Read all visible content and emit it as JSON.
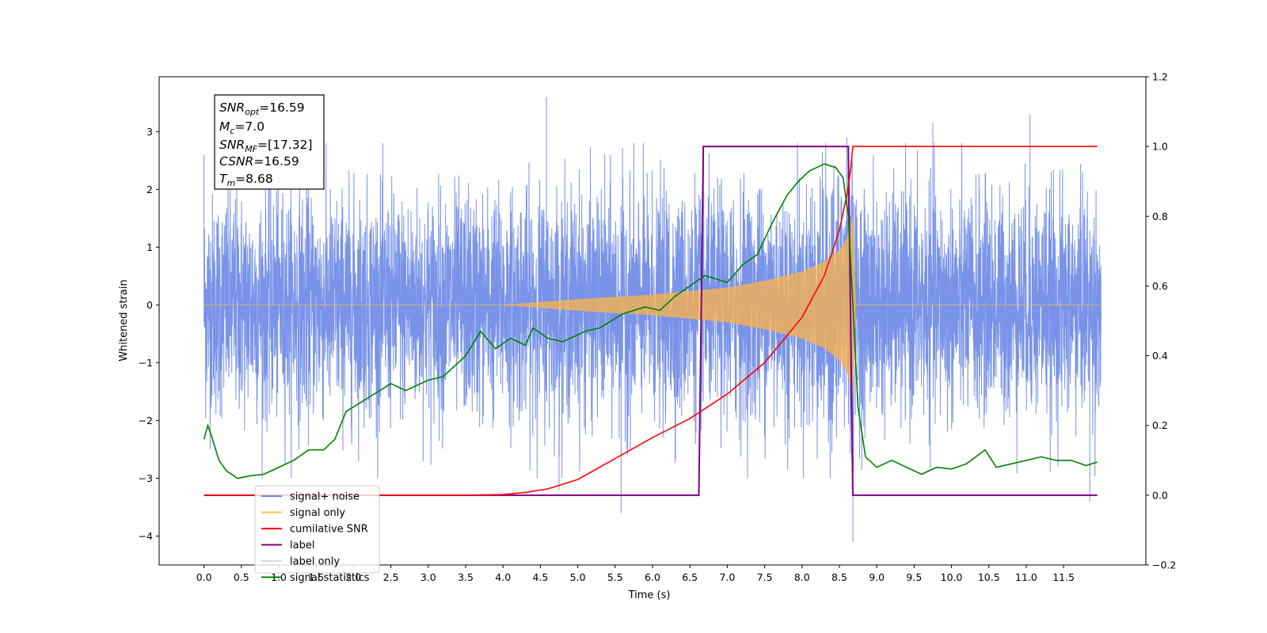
{
  "chart_data": {
    "type": "line",
    "xlabel": "Time (s)",
    "ylabel": "Whitened strain",
    "x_range": [
      0,
      12
    ],
    "xlim": [
      -0.6,
      12.6
    ],
    "ylim_left": [
      -4.5,
      3.95
    ],
    "ylim_right": [
      -0.2,
      1.2
    ],
    "x_ticks": [
      "0.0",
      "0.5",
      "1.0",
      "1.5",
      "2.0",
      "2.5",
      "3.0",
      "3.5",
      "4.0",
      "4.5",
      "5.0",
      "5.5",
      "6.0",
      "6.5",
      "7.0",
      "7.5",
      "8.0",
      "8.5",
      "9.0",
      "9.5",
      "10.0",
      "10.5",
      "11.0",
      "11.5"
    ],
    "y_ticks_left": [
      "3",
      "2",
      "1",
      "0",
      "−1",
      "−2",
      "−3",
      "−4"
    ],
    "y_ticks_right": [
      "1.2",
      "1.0",
      "0.8",
      "0.6",
      "0.4",
      "0.2",
      "0.0",
      "−0.2"
    ],
    "grid": false,
    "legend_position": "lower-left",
    "legend": [
      {
        "name": "signal+ noise",
        "color": "#6a87e6"
      },
      {
        "name": "signal only",
        "color": "#ffc04d"
      },
      {
        "name": "cumilative SNR",
        "color": "#ff0000"
      },
      {
        "name": "label",
        "color": "#800080"
      },
      {
        "name": "label only",
        "color": "#d8d8d8"
      },
      {
        "name": "signal statistics",
        "color": "#008000"
      }
    ],
    "annotation": [
      {
        "base": "SNR",
        "sub": "opt",
        "value": "=16.59"
      },
      {
        "base": "M",
        "sub": "c",
        "value": "=7.0"
      },
      {
        "base": "SNR",
        "sub": "MF",
        "value": "=[17.32]"
      },
      {
        "base": "CSNR",
        "sub": "",
        "value": "=16.59"
      },
      {
        "base": "T",
        "sub": "m",
        "value": "=8.68"
      }
    ],
    "series": [
      {
        "name": "signal+ noise",
        "axis": "left",
        "description": "whitened noise with std approx 1, amplitude range approx -4.1 to 3.6",
        "noise_std": 1.0,
        "peaks": [
          {
            "x": 0.0,
            "y": 2.6
          },
          {
            "x": 4.58,
            "y": 3.6
          },
          {
            "x": 5.58,
            "y": -3.6
          },
          {
            "x": 8.68,
            "y": -4.1
          },
          {
            "x": 11.85,
            "y": -3.4
          },
          {
            "x": 11.05,
            "y": 3.3
          },
          {
            "x": 8.6,
            "y": 2.9
          },
          {
            "x": 9.75,
            "y": 3.15
          },
          {
            "x": 4.75,
            "y": -3.2
          }
        ]
      },
      {
        "name": "signal only",
        "axis": "left",
        "description": "chirp waveform with growing envelope from about 4.0 s to merger at 8.68 s",
        "envelope": [
          [
            4.0,
            0.0
          ],
          [
            5.0,
            0.1
          ],
          [
            6.0,
            0.18
          ],
          [
            7.0,
            0.3
          ],
          [
            7.5,
            0.42
          ],
          [
            8.0,
            0.58
          ],
          [
            8.3,
            0.75
          ],
          [
            8.5,
            0.95
          ],
          [
            8.6,
            1.15
          ],
          [
            8.65,
            1.4
          ],
          [
            8.68,
            1.55
          ],
          [
            8.72,
            0.0
          ]
        ]
      },
      {
        "name": "cumilative SNR",
        "axis": "right",
        "points": [
          [
            0.0,
            0.0
          ],
          [
            3.5,
            0.0
          ],
          [
            4.0,
            0.002
          ],
          [
            4.3,
            0.008
          ],
          [
            4.6,
            0.018
          ],
          [
            5.0,
            0.045
          ],
          [
            5.5,
            0.105
          ],
          [
            6.0,
            0.165
          ],
          [
            6.5,
            0.22
          ],
          [
            7.0,
            0.29
          ],
          [
            7.5,
            0.38
          ],
          [
            8.0,
            0.51
          ],
          [
            8.3,
            0.63
          ],
          [
            8.5,
            0.76
          ],
          [
            8.6,
            0.86
          ],
          [
            8.65,
            0.93
          ],
          [
            8.68,
            1.0
          ],
          [
            11.95,
            1.0
          ]
        ]
      },
      {
        "name": "label",
        "axis": "right",
        "points": [
          [
            0.0,
            0.0
          ],
          [
            6.62,
            0.0
          ],
          [
            6.68,
            1.0
          ],
          [
            8.62,
            1.0
          ],
          [
            8.68,
            0.0
          ],
          [
            11.95,
            0.0
          ]
        ]
      },
      {
        "name": "signal statistics",
        "axis": "right",
        "points": [
          [
            0.0,
            0.16
          ],
          [
            0.05,
            0.2
          ],
          [
            0.1,
            0.17
          ],
          [
            0.2,
            0.1
          ],
          [
            0.3,
            0.07
          ],
          [
            0.45,
            0.048
          ],
          [
            0.6,
            0.055
          ],
          [
            0.8,
            0.06
          ],
          [
            1.0,
            0.08
          ],
          [
            1.2,
            0.1
          ],
          [
            1.4,
            0.13
          ],
          [
            1.6,
            0.13
          ],
          [
            1.75,
            0.16
          ],
          [
            1.9,
            0.24
          ],
          [
            2.2,
            0.28
          ],
          [
            2.5,
            0.32
          ],
          [
            2.7,
            0.3
          ],
          [
            3.0,
            0.33
          ],
          [
            3.2,
            0.34
          ],
          [
            3.5,
            0.4
          ],
          [
            3.7,
            0.47
          ],
          [
            3.9,
            0.42
          ],
          [
            4.1,
            0.45
          ],
          [
            4.3,
            0.43
          ],
          [
            4.4,
            0.48
          ],
          [
            4.6,
            0.45
          ],
          [
            4.8,
            0.44
          ],
          [
            5.1,
            0.47
          ],
          [
            5.3,
            0.48
          ],
          [
            5.6,
            0.52
          ],
          [
            5.9,
            0.54
          ],
          [
            6.1,
            0.53
          ],
          [
            6.3,
            0.57
          ],
          [
            6.5,
            0.6
          ],
          [
            6.7,
            0.63
          ],
          [
            7.0,
            0.61
          ],
          [
            7.2,
            0.66
          ],
          [
            7.4,
            0.69
          ],
          [
            7.6,
            0.78
          ],
          [
            7.8,
            0.86
          ],
          [
            7.95,
            0.9
          ],
          [
            8.1,
            0.93
          ],
          [
            8.3,
            0.95
          ],
          [
            8.45,
            0.94
          ],
          [
            8.55,
            0.91
          ],
          [
            8.62,
            0.8
          ],
          [
            8.68,
            0.55
          ],
          [
            8.75,
            0.25
          ],
          [
            8.85,
            0.11
          ],
          [
            9.0,
            0.08
          ],
          [
            9.2,
            0.1
          ],
          [
            9.4,
            0.08
          ],
          [
            9.6,
            0.06
          ],
          [
            9.8,
            0.08
          ],
          [
            10.0,
            0.075
          ],
          [
            10.2,
            0.09
          ],
          [
            10.45,
            0.13
          ],
          [
            10.6,
            0.08
          ],
          [
            10.8,
            0.09
          ],
          [
            11.0,
            0.1
          ],
          [
            11.2,
            0.11
          ],
          [
            11.4,
            0.1
          ],
          [
            11.6,
            0.1
          ],
          [
            11.8,
            0.085
          ],
          [
            11.95,
            0.095
          ]
        ]
      }
    ]
  }
}
